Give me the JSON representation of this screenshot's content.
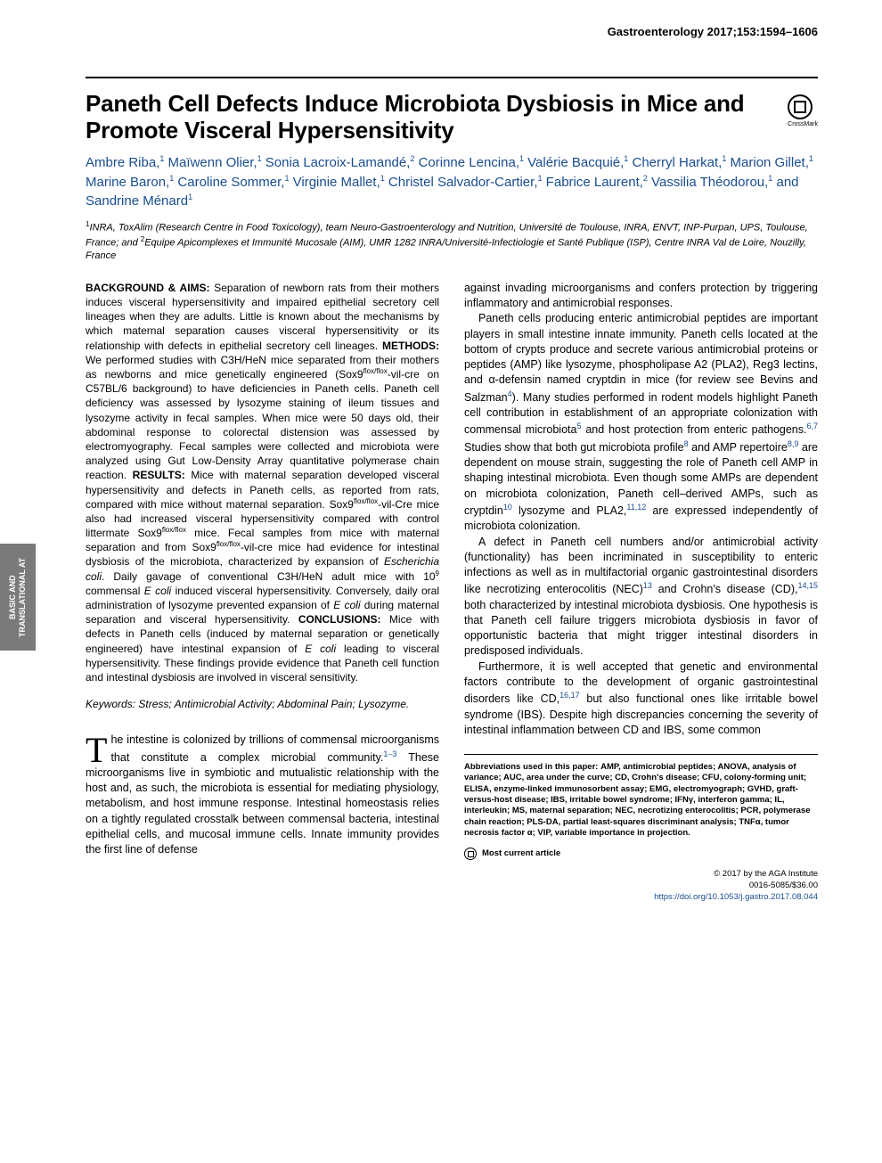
{
  "running_head": "Gastroenterology 2017;153:1594–1606",
  "side_tab": "BASIC AND TRANSLATIONAL AT",
  "title": "Paneth Cell Defects Induce Microbiota Dysbiosis in Mice and Promote Visceral Hypersensitivity",
  "crossmark_label": "CrossMark",
  "authors_html": "Ambre Riba,<sup>1</sup> Maïwenn Olier,<sup>1</sup> Sonia Lacroix-Lamandé,<sup>2</sup> Corinne Lencina,<sup>1</sup> Valérie Bacquié,<sup>1</sup> Cherryl Harkat,<sup>1</sup> Marion Gillet,<sup>1</sup> Marine Baron,<sup>1</sup> Caroline Sommer,<sup>1</sup> Virginie Mallet,<sup>1</sup> Christel Salvador-Cartier,<sup>1</sup> Fabrice Laurent,<sup>2</sup> Vassilia Théodorou,<sup>1</sup> and Sandrine Ménard<sup>1</sup>",
  "affiliations_html": "<sup>1</sup>INRA, ToxAlim (Research Centre in Food Toxicology), team Neuro-Gastroenterology and Nutrition, Université de Toulouse, INRA, ENVT, INP-Purpan, UPS, Toulouse, France; and <sup>2</sup>Equipe Apicomplexes et Immunité Mucosale (AIM), UMR 1282 INRA/Université-Infectiologie et Santé Publique (ISP), Centre INRA Val de Loire, Nouzilly, France",
  "abstract_html": "<b>BACKGROUND &amp; AIMS:</b> Separation of newborn rats from their mothers induces visceral hypersensitivity and impaired epithelial secretory cell lineages when they are adults. Little is known about the mechanisms by which maternal separation causes visceral hypersensitivity or its relationship with defects in epithelial secretory cell lineages. <b>METHODS:</b> We performed studies with C3H/HeN mice separated from their mothers as newborns and mice genetically engineered (Sox9<sup>flox/flox</sup>-vil-cre on C57BL/6 background) to have deficiencies in Paneth cells. Paneth cell deficiency was assessed by lysozyme staining of ileum tissues and lysozyme activity in fecal samples. When mice were 50 days old, their abdominal response to colorectal distension was assessed by electromyography. Fecal samples were collected and microbiota were analyzed using Gut Low-Density Array quantitative polymerase chain reaction. <b>RESULTS:</b> Mice with maternal separation developed visceral hypersensitivity and defects in Paneth cells, as reported from rats, compared with mice without maternal separation. Sox9<sup>flox/flox</sup>-vil-Cre mice also had increased visceral hypersensitivity compared with control littermate Sox9<sup>flox/flox</sup> mice. Fecal samples from mice with maternal separation and from Sox9<sup>flox/flox</sup>-vil-cre mice had evidence for intestinal dysbiosis of the microbiota, characterized by expansion of <i>Escherichia coli</i>. Daily gavage of conventional C3H/HeN adult mice with 10<sup>9</sup> commensal <i>E coli</i> induced visceral hypersensitivity. Conversely, daily oral administration of lysozyme prevented expansion of <i>E coli</i> during maternal separation and visceral hypersensitivity. <b>CONCLUSIONS:</b> Mice with defects in Paneth cells (induced by maternal separation or genetically engineered) have intestinal expansion of <i>E coli</i> leading to visceral hypersensitivity. These findings provide evidence that Paneth cell function and intestinal dysbiosis are involved in visceral sensitivity.",
  "keywords": "Keywords: Stress; Antimicrobial Activity; Abdominal Pain; Lysozyme.",
  "body_col1_html": "<span class=\"dropcap\">T</span>he intestine is colonized by trillions of commensal microorganisms that constitute a complex microbial community.<span class=\"ref\">1–3</span> These microorganisms live in symbiotic and mutualistic relationship with the host and, as such, the microbiota is essential for mediating physiology, metabolism, and host immune response. Intestinal homeostasis relies on a tightly regulated crosstalk between commensal bacteria, intestinal epithelial cells, and mucosal immune cells. Innate immunity provides the first line of defense",
  "body_col2_p1_html": "against invading microorganisms and confers protection by triggering inflammatory and antimicrobial responses.",
  "body_col2_p2_html": "Paneth cells producing enteric antimicrobial peptides are important players in small intestine innate immunity. Paneth cells located at the bottom of crypts produce and secrete various antimicrobial proteins or peptides (AMP) like lysozyme, phospholipase A2 (PLA2), Reg3 lectins, and α-defensin named cryptdin in mice (for review see Bevins and Salzman<span class=\"ref\">4</span>). Many studies performed in rodent models highlight Paneth cell contribution in establishment of an appropriate colonization with commensal microbiota<span class=\"ref\">5</span> and host protection from enteric pathogens.<span class=\"ref\">6,7</span> Studies show that both gut microbiota profile<span class=\"ref\">8</span> and AMP repertoire<span class=\"ref\">8,9</span> are dependent on mouse strain, suggesting the role of Paneth cell AMP in shaping intestinal microbiota. Even though some AMPs are dependent on microbiota colonization, Paneth cell–derived AMPs, such as cryptdin<span class=\"ref\">10</span> lysozyme and PLA2,<span class=\"ref\">11,12</span> are expressed independently of microbiota colonization.",
  "body_col2_p3_html": "A defect in Paneth cell numbers and/or antimicrobial activity (functionality) has been incriminated in susceptibility to enteric infections as well as in multifactorial organic gastrointestinal disorders like necrotizing enterocolitis (NEC)<span class=\"ref\">13</span> and Crohn's disease (CD),<span class=\"ref\">14,15</span> both characterized by intestinal microbiota dysbiosis. One hypothesis is that Paneth cell failure triggers microbiota dysbiosis in favor of opportunistic bacteria that might trigger intestinal disorders in predisposed individuals.",
  "body_col2_p4_html": "Furthermore, it is well accepted that genetic and environmental factors contribute to the development of organic gastrointestinal disorders like CD,<span class=\"ref\">16,17</span> but also functional ones like irritable bowel syndrome (IBS). Despite high discrepancies concerning the severity of intestinal inflammation between CD and IBS, some common",
  "abbrev_label": "Abbreviations used in this paper:",
  "abbrev_body": "AMP, antimicrobial peptides; ANOVA, analysis of variance; AUC, area under the curve; CD, Crohn's disease; CFU, colony-forming unit; ELISA, enzyme-linked immunosorbent assay; EMG, electromyograph; GVHD, graft-versus-host disease; IBS, irritable bowel syndrome; IFNγ, interferon gamma; IL, interleukin; MS, maternal separation; NEC, necrotizing enterocolitis; PCR, polymerase chain reaction; PLS-DA, partial least-squares discriminant analysis; TNFα, tumor necrosis factor α; VIP, variable importance in projection.",
  "most_current": "Most current article",
  "copyright_line1": "© 2017 by the AGA Institute",
  "copyright_line2": "0016-5085/$36.00",
  "doi": "https://doi.org/10.1053/j.gastro.2017.08.044",
  "colors": {
    "link": "#1a4d8f",
    "sidetab_bg": "#7a7a7a",
    "text": "#000000",
    "bg": "#ffffff"
  }
}
